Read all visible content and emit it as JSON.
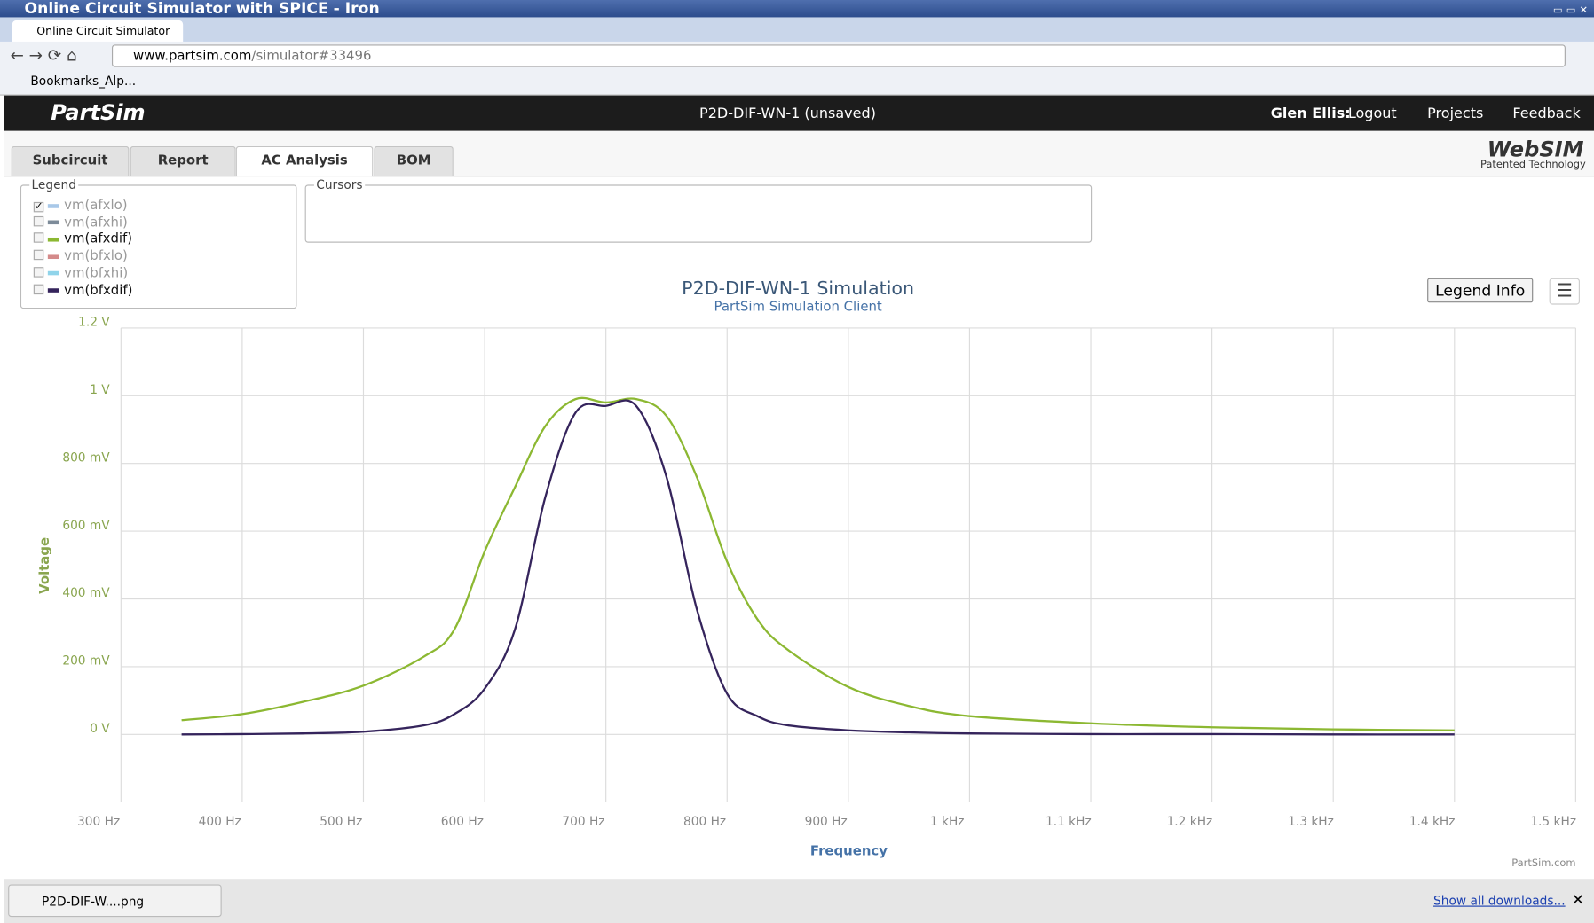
{
  "window": {
    "title": "Online Circuit Simulator with SPICE - Iron",
    "tab": "Online Circuit Simulator",
    "url_host": "www.partsim.com",
    "url_path": "/simulator#33496",
    "bookmark": "Bookmarks_Alp..."
  },
  "app": {
    "name": "PartSim",
    "document": "P2D-DIF-WN-1 (unsaved)",
    "user": "Glen Ellis:",
    "logout": "Logout",
    "menu": [
      "Projects",
      "Feedback"
    ],
    "tabs": [
      "Subcircuit",
      "Report",
      "AC Analysis",
      "BOM"
    ],
    "active_tab": 2,
    "brand": "WebSIM",
    "brand_sub": "Patented Technology",
    "legend_box": "Legend",
    "cursors_box": "Cursors",
    "legend_info": "Legend Info",
    "credit": "PartSim.com"
  },
  "downloads": {
    "file": "P2D-DIF-W....png",
    "show_all": "Show all downloads..."
  },
  "chart_data": {
    "type": "line",
    "title": "P2D-DIF-WN-1 Simulation",
    "subtitle": "PartSim Simulation Client",
    "x_label": "Frequency",
    "y_label": "Voltage",
    "grid": true,
    "xlim": [
      300,
      1500
    ],
    "xticks": [
      {
        "value": 300,
        "label": "300 Hz"
      },
      {
        "value": 400,
        "label": "400 Hz"
      },
      {
        "value": 500,
        "label": "500 Hz"
      },
      {
        "value": 600,
        "label": "600 Hz"
      },
      {
        "value": 700,
        "label": "700 Hz"
      },
      {
        "value": 800,
        "label": "800 Hz"
      },
      {
        "value": 900,
        "label": "900 Hz"
      },
      {
        "value": 1000,
        "label": "1 kHz"
      },
      {
        "value": 1100,
        "label": "1.1 kHz"
      },
      {
        "value": 1200,
        "label": "1.2 kHz"
      },
      {
        "value": 1300,
        "label": "1.3 kHz"
      },
      {
        "value": 1400,
        "label": "1.4 kHz"
      },
      {
        "value": 1500,
        "label": "1.5 kHz"
      }
    ],
    "ylim": [
      -0.2,
      1.2
    ],
    "yticks": [
      {
        "value": 0,
        "label": "0 V"
      },
      {
        "value": 0.2,
        "label": "200 mV"
      },
      {
        "value": 0.4,
        "label": "400 mV"
      },
      {
        "value": 0.6,
        "label": "600 mV"
      },
      {
        "value": 0.8,
        "label": "800 mV"
      },
      {
        "value": 1,
        "label": "1 V"
      },
      {
        "value": 1.2,
        "label": "1.2 V"
      }
    ],
    "x": [
      350,
      400,
      450,
      500,
      550,
      575,
      600,
      625,
      650,
      675,
      700,
      725,
      750,
      775,
      800,
      825,
      850,
      900,
      950,
      1000,
      1100,
      1200,
      1300,
      1400
    ],
    "series": [
      {
        "name": "vm(afxlo)",
        "color": "#a8c8e8",
        "visible": false,
        "checked": true
      },
      {
        "name": "vm(afxhi)",
        "color": "#7d8b99",
        "visible": false,
        "checked": false
      },
      {
        "name": "vm(afxdif)",
        "color": "#8cb832",
        "visible": true,
        "checked": false,
        "values": [
          0.042,
          0.06,
          0.096,
          0.144,
          0.23,
          0.31,
          0.54,
          0.73,
          0.91,
          0.99,
          0.98,
          0.99,
          0.94,
          0.76,
          0.51,
          0.34,
          0.25,
          0.14,
          0.084,
          0.054,
          0.033,
          0.021,
          0.015,
          0.012
        ]
      },
      {
        "name": "vm(bfxlo)",
        "color": "#d48a8a",
        "visible": false,
        "checked": false
      },
      {
        "name": "vm(bfxhi)",
        "color": "#90d4ea",
        "visible": false,
        "checked": false
      },
      {
        "name": "vm(bfxdif)",
        "color": "#35245c",
        "visible": true,
        "checked": false,
        "values": [
          0,
          0.001,
          0.003,
          0.008,
          0.027,
          0.06,
          0.135,
          0.31,
          0.7,
          0.95,
          0.97,
          0.97,
          0.76,
          0.37,
          0.12,
          0.054,
          0.027,
          0.012,
          0.006,
          0.003,
          0.001,
          0.001,
          0,
          0
        ]
      }
    ]
  }
}
